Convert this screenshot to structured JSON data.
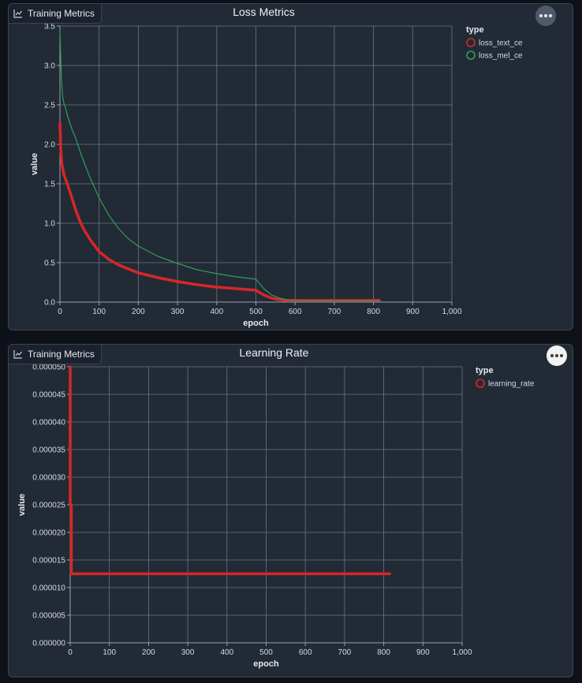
{
  "panels": [
    {
      "tag_label": "Training Metrics",
      "tag_icon": "chart-icon",
      "more_icon": "ellipsis-icon"
    },
    {
      "tag_label": "Training Metrics",
      "tag_icon": "chart-icon",
      "more_icon": "ellipsis-icon"
    }
  ],
  "chart_data": [
    {
      "type": "line",
      "title": "Loss Metrics",
      "xlabel": "epoch",
      "ylabel": "value",
      "xlim": [
        0,
        1000
      ],
      "ylim": [
        0,
        3.5
      ],
      "xticks": [
        0,
        100,
        200,
        300,
        400,
        500,
        600,
        700,
        800,
        900,
        1000
      ],
      "xtick_labels": [
        "0",
        "100",
        "200",
        "300",
        "400",
        "500",
        "600",
        "700",
        "800",
        "900",
        "1,000"
      ],
      "yticks": [
        0,
        0.5,
        1,
        1.5,
        2,
        2.5,
        3,
        3.5
      ],
      "ytick_labels": [
        "0.0",
        "0.5",
        "1.0",
        "1.5",
        "2.0",
        "2.5",
        "3.0",
        "3.5"
      ],
      "grid": true,
      "legend_title": "type",
      "legend_position": "right",
      "series": [
        {
          "name": "loss_text_ce",
          "color": "#d62728",
          "width": 3.5,
          "x": [
            0,
            2,
            5,
            10,
            20,
            30,
            40,
            50,
            60,
            80,
            100,
            125,
            150,
            175,
            200,
            250,
            300,
            350,
            400,
            450,
            500,
            520,
            540,
            560,
            580,
            600,
            650,
            700,
            750,
            800,
            815
          ],
          "y": [
            2.27,
            1.95,
            1.75,
            1.62,
            1.48,
            1.33,
            1.17,
            1.04,
            0.93,
            0.77,
            0.64,
            0.54,
            0.47,
            0.42,
            0.37,
            0.31,
            0.26,
            0.22,
            0.19,
            0.17,
            0.15,
            0.09,
            0.05,
            0.03,
            0.02,
            0.02,
            0.02,
            0.02,
            0.02,
            0.02,
            0.02
          ]
        },
        {
          "name": "loss_mel_ce",
          "color": "#2ca05a",
          "width": 1.2,
          "x": [
            0,
            2,
            4,
            7,
            10,
            15,
            20,
            30,
            40,
            50,
            60,
            75,
            100,
            125,
            150,
            175,
            200,
            250,
            300,
            350,
            400,
            450,
            500,
            520,
            540,
            560,
            580,
            600,
            650,
            700,
            750,
            800,
            815
          ],
          "y": [
            3.45,
            3.1,
            2.82,
            2.6,
            2.52,
            2.45,
            2.35,
            2.2,
            2.08,
            1.93,
            1.79,
            1.6,
            1.32,
            1.1,
            0.93,
            0.8,
            0.71,
            0.58,
            0.49,
            0.41,
            0.36,
            0.32,
            0.29,
            0.17,
            0.09,
            0.05,
            0.03,
            0.02,
            0.02,
            0.02,
            0.02,
            0.02,
            0.02
          ]
        }
      ]
    },
    {
      "type": "line",
      "title": "Learning Rate",
      "xlabel": "epoch",
      "ylabel": "value",
      "xlim": [
        0,
        1000
      ],
      "ylim": [
        0,
        5e-05
      ],
      "xticks": [
        0,
        100,
        200,
        300,
        400,
        500,
        600,
        700,
        800,
        900,
        1000
      ],
      "xtick_labels": [
        "0",
        "100",
        "200",
        "300",
        "400",
        "500",
        "600",
        "700",
        "800",
        "900",
        "1,000"
      ],
      "yticks": [
        0,
        5e-06,
        1e-05,
        1.5e-05,
        2e-05,
        2.5e-05,
        3e-05,
        3.5e-05,
        4e-05,
        4.5e-05,
        5e-05
      ],
      "ytick_labels": [
        "0.000000",
        "0.000005",
        "0.000010",
        "0.000015",
        "0.000020",
        "0.000025",
        "0.000030",
        "0.000035",
        "0.000040",
        "0.000045",
        "0.000050"
      ],
      "grid": true,
      "legend_title": "type",
      "legend_position": "right",
      "series": [
        {
          "name": "learning_rate",
          "color": "#d62728",
          "width": 3.5,
          "x": [
            0,
            0,
            3,
            3,
            815
          ],
          "y": [
            5e-05,
            2.5e-05,
            2.5e-05,
            1.25e-05,
            1.25e-05
          ]
        }
      ]
    }
  ]
}
